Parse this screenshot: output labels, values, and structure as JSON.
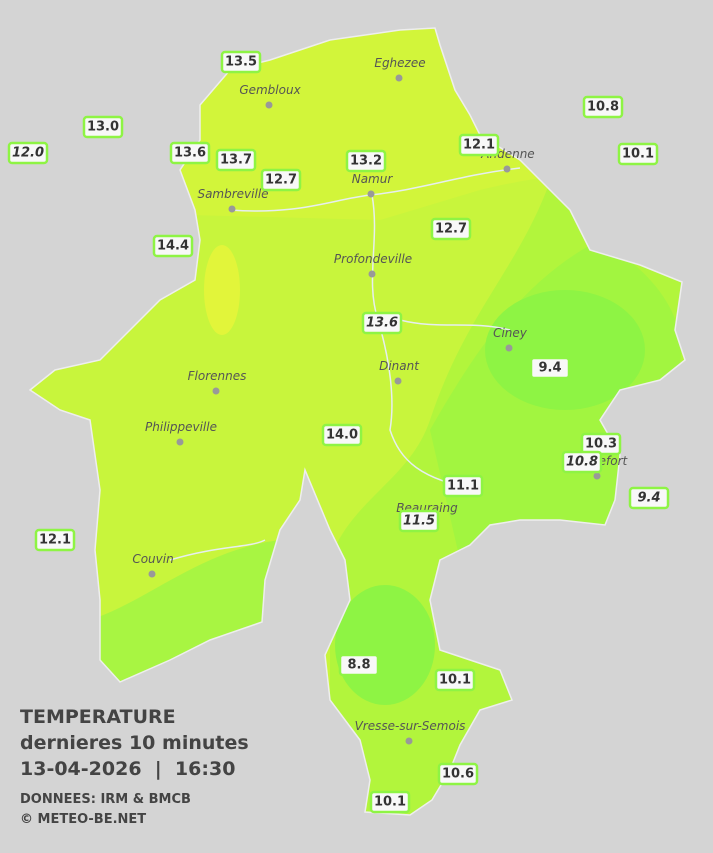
{
  "cities": [
    "Eghezee",
    "Gembloux",
    "Andenne",
    "Namur",
    "Sambreville",
    "Profondeville",
    "Ciney",
    "Dinant",
    "Florennes",
    "Philippeville",
    "Rochefort",
    "Beauraing",
    "Couvin",
    "Vresse-sur-Semois"
  ],
  "stations": [
    "13.5",
    "13.0",
    "12.0",
    "13.6",
    "13.7",
    "12.7",
    "13.2",
    "12.1",
    "10.8",
    "10.1",
    "14.4",
    "12.7",
    "13.6",
    "9.4",
    "14.0",
    "10.3",
    "10.8",
    "11.1",
    "11.5",
    "9.4",
    "12.1",
    "8.8",
    "10.1",
    "10.6",
    "10.1"
  ],
  "caption": {
    "title": "TEMPERATURE",
    "subtitle": "dernieres 10 minutes",
    "datetime": "13-04-2026  |  16:30",
    "source": "DONNEES: IRM & BMCB",
    "credit": "© METEO-BE.NET"
  }
}
